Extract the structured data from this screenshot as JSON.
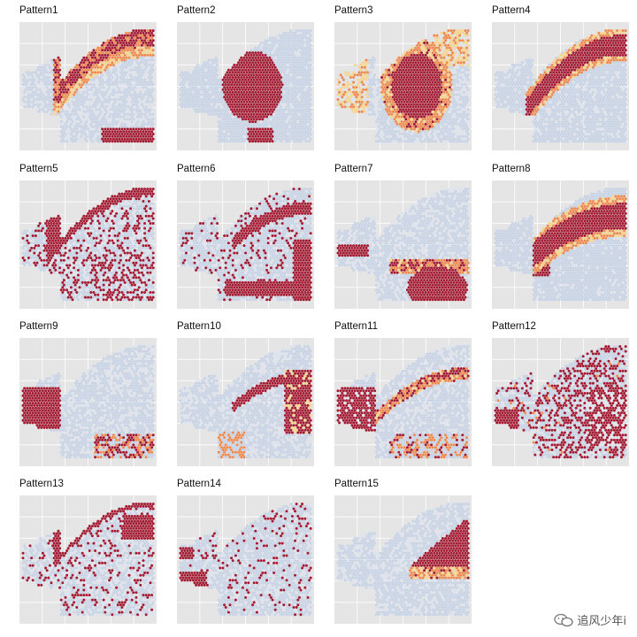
{
  "chart_data": {
    "type": "heatmap",
    "panels": [
      {
        "title": "Pattern1",
        "region": "cortex_band"
      },
      {
        "title": "Pattern2",
        "region": "thalamus_blob"
      },
      {
        "title": "Pattern3",
        "region": "ring_blob"
      },
      {
        "title": "Pattern4",
        "region": "upper_arc"
      },
      {
        "title": "Pattern5",
        "region": "outer_edge_scatter"
      },
      {
        "title": "Pattern6",
        "region": "inner_edges"
      },
      {
        "title": "Pattern7",
        "region": "bottom_blob"
      },
      {
        "title": "Pattern8",
        "region": "hook_band"
      },
      {
        "title": "Pattern9",
        "region": "left_block"
      },
      {
        "title": "Pattern10",
        "region": "right_inner"
      },
      {
        "title": "Pattern11",
        "region": "left_lobes"
      },
      {
        "title": "Pattern12",
        "region": "right_scatter"
      },
      {
        "title": "Pattern13",
        "region": "sparse_scatter"
      },
      {
        "title": "Pattern14",
        "region": "left_lower"
      },
      {
        "title": "Pattern15",
        "region": "right_wedge"
      }
    ],
    "colors": {
      "panel_bg": "#e5e5e5",
      "low": "#c8d4e6",
      "mid_low": "#dfe3ec",
      "mid": "#f6d58f",
      "mid_high": "#ee8a4e",
      "high": "#a31a32"
    }
  },
  "watermark": {
    "icon": "chat-bubble-icon",
    "text": "追风少年i"
  }
}
